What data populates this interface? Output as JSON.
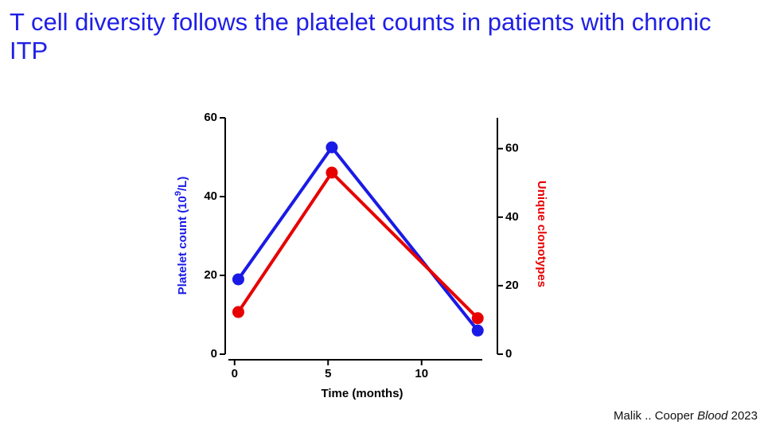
{
  "chart_data": {
    "type": "line",
    "title": "T cell diversity follows the platelet counts in patients with chronic ITP",
    "xlabel": "Time (months)",
    "ylabel": [
      "Platelet count (10",
      "9",
      "/L)"
    ],
    "y2label": "Unique clonotypes",
    "x": [
      0.2,
      5.2,
      13
    ],
    "series": [
      {
        "name": "Platelet count",
        "color": "#1a1ae6",
        "values": [
          19,
          52.5,
          6
        ]
      },
      {
        "name": "Unique clonotypes",
        "color": "#e60000",
        "axis": "y2",
        "values": [
          12.3,
          53,
          10.5
        ]
      }
    ],
    "xlim": [
      -0.5,
      13.5
    ],
    "xticks": [
      0,
      5,
      10
    ],
    "ylim": [
      0,
      60
    ],
    "yticks": [
      0,
      20,
      40,
      60
    ],
    "y2lim": [
      0,
      69
    ],
    "y2ticks": [
      0,
      20,
      40,
      60
    ]
  },
  "citation": [
    "Malik .. Cooper ",
    "Blood",
    " 2023"
  ]
}
